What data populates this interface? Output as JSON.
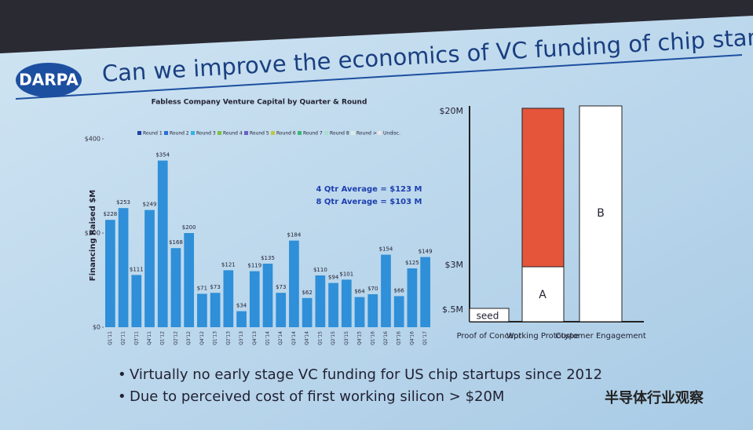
{
  "slide": {
    "logo": "DARPA",
    "title": "Can we improve the economics of VC funding of chip startup?",
    "bullets": [
      "Virtually no early stage VC funding for US chip startups since 2012",
      "Due to perceived cost of first working silicon > $20M"
    ],
    "watermark": "半导体行业观察"
  },
  "chart_data": {
    "type": "bar",
    "title": "Fabless Company Venture Capital by Quarter & Round",
    "y_label": "Financing Raised $M",
    "legend": [
      "Round 1",
      "Round 2",
      "Round 3",
      "Round 4",
      "Round 5",
      "Round 6",
      "Round 7",
      "Round 8",
      "Round > 9",
      "Undisc."
    ],
    "legend_colors": [
      "#1f3fa8",
      "#2b6fd6",
      "#31b3e8",
      "#7cc242",
      "#6c5fc7",
      "#c0c840",
      "#3cb878",
      "#a9e0c9",
      "#d8eee4",
      "#e6e6e6"
    ],
    "categories": [
      "Q1'11",
      "Q2'11",
      "Q3'11",
      "Q4'11",
      "Q1'12",
      "Q2'12",
      "Q3'12",
      "Q4'12",
      "Q1'13",
      "Q2'13",
      "Q3'13",
      "Q4'13",
      "Q1'14",
      "Q2'14",
      "Q3'14",
      "Q4'14",
      "Q1'15",
      "Q2'15",
      "Q3'15",
      "Q4'15",
      "Q1'16",
      "Q2'16",
      "Q3'16",
      "Q4'16",
      "Q1'17"
    ],
    "values": [
      228,
      253,
      111,
      249,
      354,
      168,
      200,
      71,
      73,
      121,
      34,
      119,
      135,
      73,
      184,
      62,
      110,
      94,
      101,
      64,
      70,
      154,
      66,
      125,
      149
    ],
    "value_labels": [
      "$228",
      "$253",
      "$111",
      "$249",
      "$354",
      "$168",
      "$200",
      "$71",
      "$73",
      "$121",
      "$34",
      "$119",
      "$135",
      "$73",
      "$184",
      "$62",
      "$110",
      "$94",
      "$101",
      "$64",
      "$70",
      "$154",
      "$66",
      "$125",
      "$149"
    ],
    "color": "#2f8fd8",
    "ylim": [
      0,
      400
    ],
    "yticks": [
      {
        "value": 0,
        "label": "$0"
      },
      {
        "value": 200,
        "label": "$200"
      },
      {
        "value": 400,
        "label": "$400"
      }
    ],
    "annotations": [
      "4 Qtr Average = $123 M",
      "8 Qtr Average = $103 M"
    ]
  },
  "diagram": {
    "axis_labels": [
      "$20M",
      "$3M",
      "$.5M"
    ],
    "boxes": [
      "seed",
      "A",
      "B"
    ],
    "stages": [
      "Proof of Concept",
      "Working Prototype",
      "Customer Engagement"
    ]
  }
}
